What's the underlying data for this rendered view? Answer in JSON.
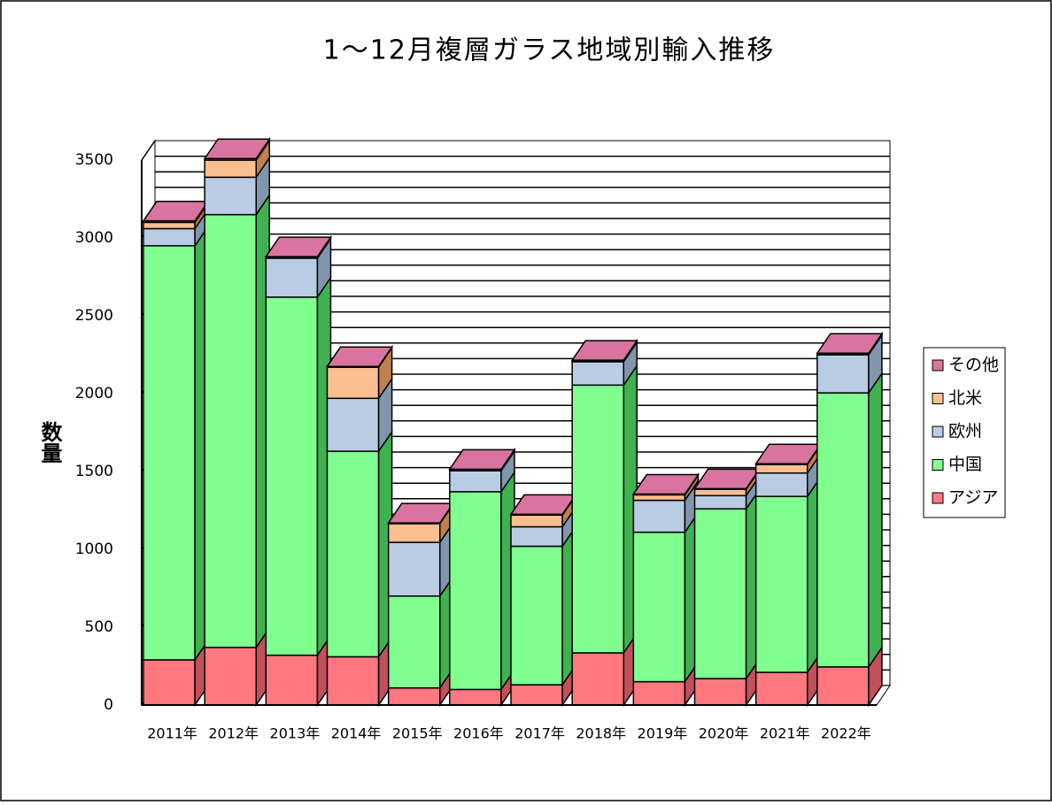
{
  "chart_data": {
    "type": "bar3d_stacked",
    "title": "1～12月複層ガラス地域別輸入推移",
    "y_label": "数量",
    "categories": [
      "2011年",
      "2012年",
      "2013年",
      "2014年",
      "2015年",
      "2016年",
      "2017年",
      "2018年",
      "2019年",
      "2020年",
      "2021年",
      "2022年"
    ],
    "series": [
      {
        "name": "アジア",
        "color": "#ff7880",
        "side": "#c0505a",
        "values": [
          290,
          370,
          320,
          310,
          110,
          100,
          130,
          335,
          150,
          170,
          210,
          245
        ]
      },
      {
        "name": "中国",
        "color": "#80ff90",
        "side": "#40b050",
        "values": [
          2660,
          2780,
          2300,
          1320,
          590,
          1270,
          890,
          1720,
          960,
          1090,
          1130,
          1760
        ]
      },
      {
        "name": "欧州",
        "color": "#b8cce4",
        "side": "#7f96ad",
        "values": [
          110,
          240,
          250,
          340,
          345,
          135,
          125,
          150,
          205,
          85,
          150,
          245
        ]
      },
      {
        "name": "北米",
        "color": "#fbbf8f",
        "side": "#c08050",
        "values": [
          40,
          110,
          5,
          200,
          120,
          5,
          75,
          5,
          35,
          40,
          55,
          5
        ]
      },
      {
        "name": "その他",
        "color": "#d8749f",
        "side": "#a04c74",
        "values": [
          10,
          10,
          5,
          5,
          5,
          5,
          5,
          5,
          5,
          5,
          5,
          5
        ]
      }
    ],
    "ylim": [
      0,
      3500
    ],
    "yticks": [
      0,
      500,
      1000,
      1500,
      2000,
      2500,
      3000,
      3500
    ]
  }
}
